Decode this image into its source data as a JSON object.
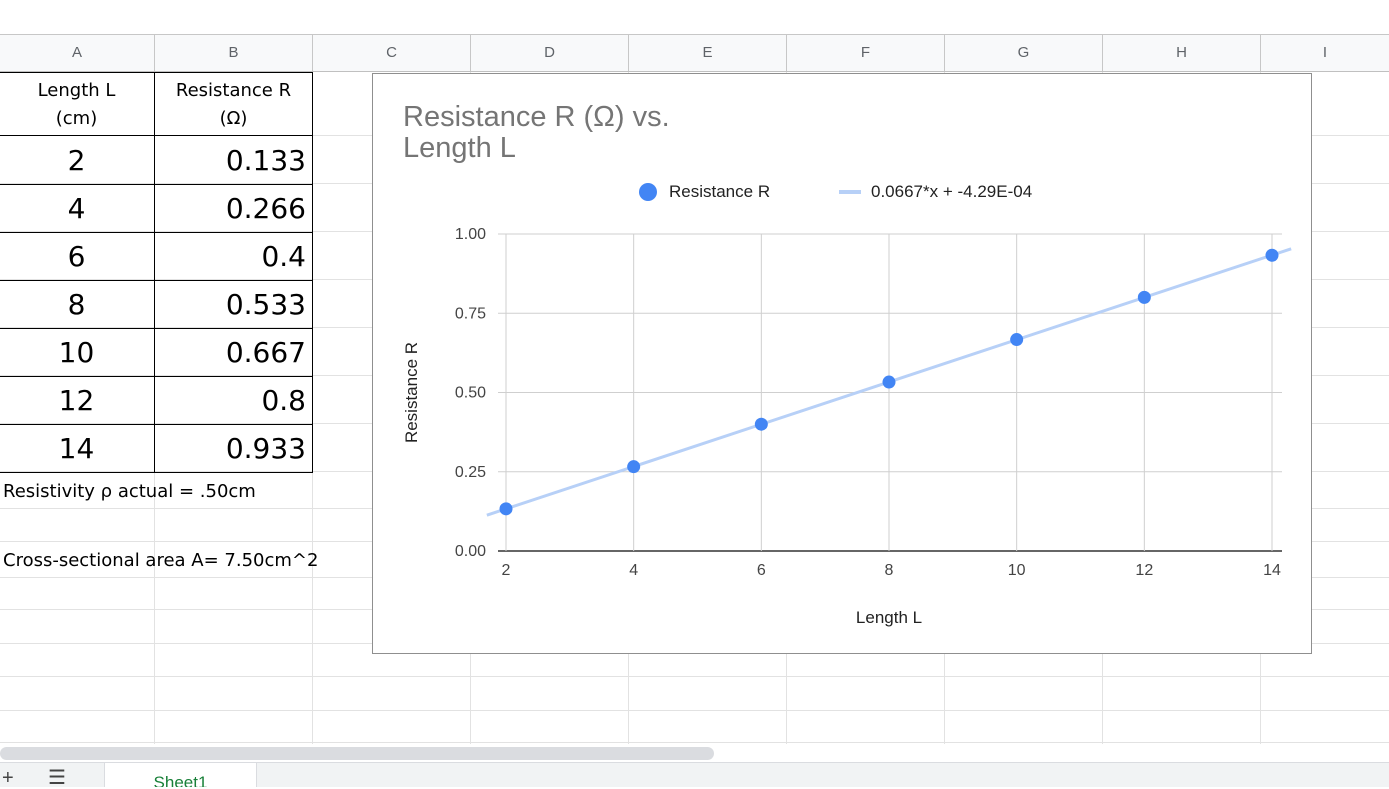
{
  "columns": [
    "A",
    "B",
    "C",
    "D",
    "E",
    "F",
    "G",
    "H",
    "I"
  ],
  "table": {
    "header_a": "Length L\n(cm)",
    "header_b": "Resistance R\n(Ω)",
    "rows": [
      {
        "a": "2",
        "b": "0.133"
      },
      {
        "a": "4",
        "b": "0.266"
      },
      {
        "a": "6",
        "b": "0.4"
      },
      {
        "a": "8",
        "b": "0.533"
      },
      {
        "a": "10",
        "b": "0.667"
      },
      {
        "a": "12",
        "b": "0.8"
      },
      {
        "a": "14",
        "b": "0.933"
      }
    ]
  },
  "notes": {
    "resistivity": "Resistivity ρ actual = .50cm",
    "area": "Cross-sectional area A= 7.50cm^2"
  },
  "chart_data": {
    "type": "scatter",
    "title": "Resistance R (Ω) vs. Length L",
    "xlabel": "Length L",
    "ylabel": "Resistance R",
    "xlim": [
      2,
      14
    ],
    "ylim": [
      0,
      1
    ],
    "xticks": [
      "2",
      "4",
      "6",
      "8",
      "10",
      "12",
      "14"
    ],
    "yticks": [
      "0.00",
      "0.25",
      "0.50",
      "0.75",
      "1.00"
    ],
    "series": [
      {
        "name": "Resistance R",
        "x": [
          2,
          4,
          6,
          8,
          10,
          12,
          14
        ],
        "y": [
          0.133,
          0.266,
          0.4,
          0.533,
          0.667,
          0.8,
          0.933
        ],
        "color": "#4285f4"
      }
    ],
    "trendline": {
      "label": "0.0667*x + -4.29E-04",
      "slope": 0.0667,
      "intercept": -0.000429,
      "color": "#b7d0f7"
    },
    "grid": true,
    "legend": "top"
  },
  "tabs": {
    "sheet1": "Sheet1"
  }
}
